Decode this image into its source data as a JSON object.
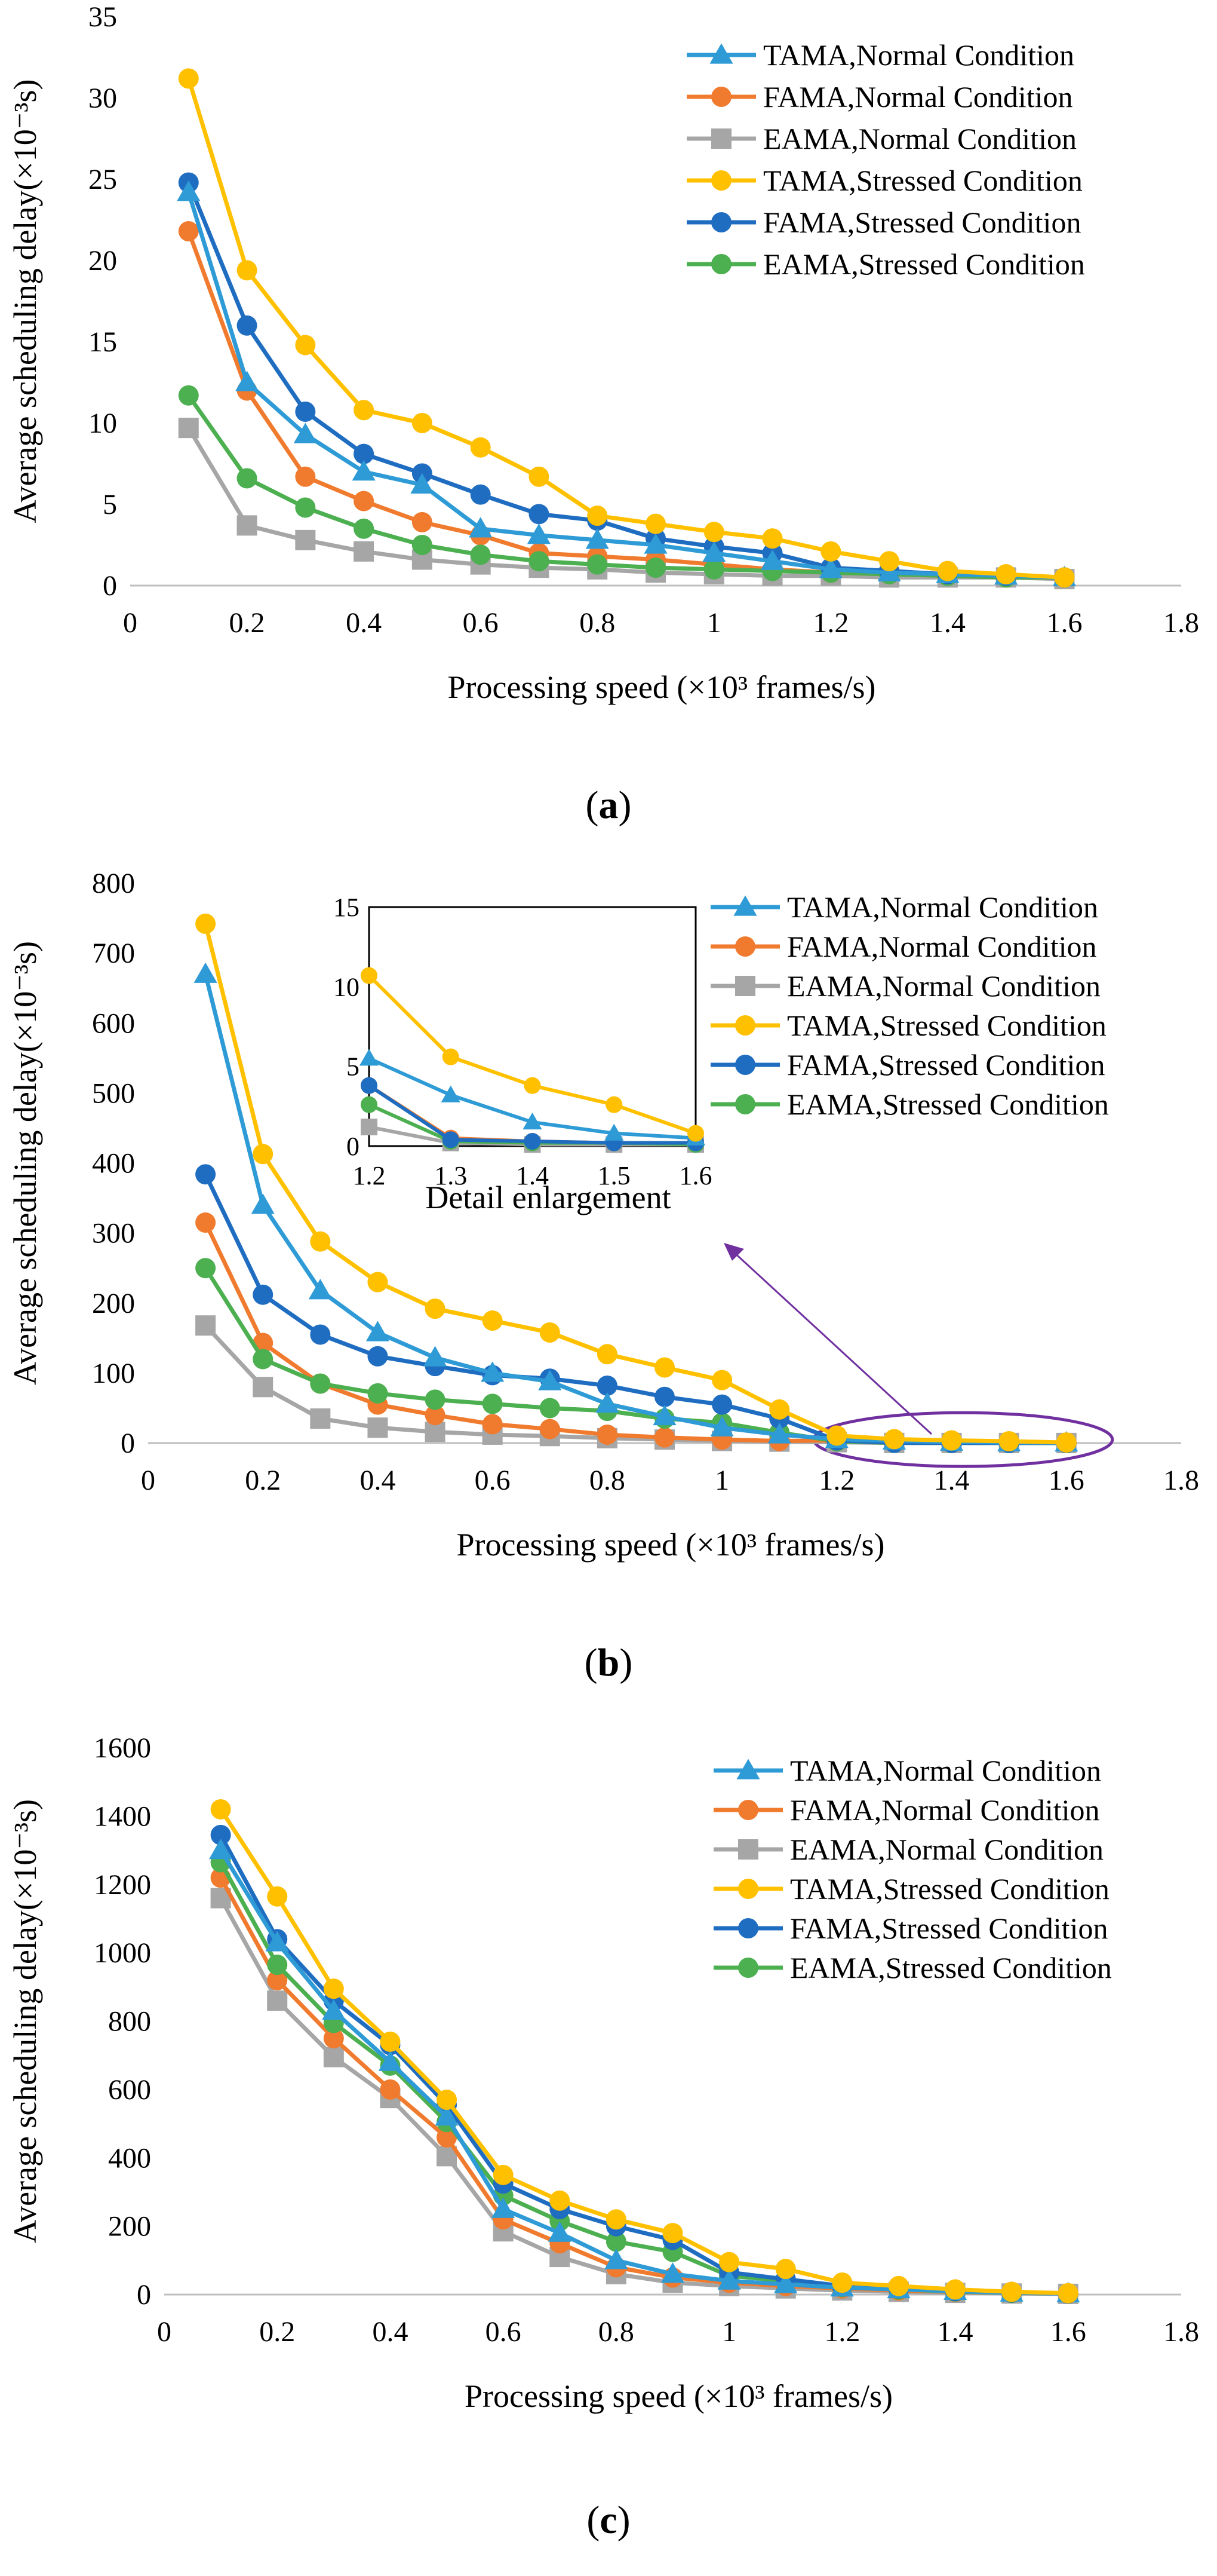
{
  "series_styles": {
    "TAMA,Normal Condition": {
      "color": "#2E9BD6",
      "marker": "triangle"
    },
    "FAMA,Normal Condition": {
      "color": "#F07B2E",
      "marker": "circle"
    },
    "EAMA,Normal Condition": {
      "color": "#A6A6A6",
      "marker": "square"
    },
    "TAMA,Stressed Condition": {
      "color": "#FFC000",
      "marker": "circle"
    },
    "FAMA,Stressed Condition": {
      "color": "#1F6DC1",
      "marker": "circle"
    },
    "EAMA,Stressed Condition": {
      "color": "#4CAF50",
      "marker": "circle"
    }
  },
  "panel_labels": {
    "a": {
      "open": "(",
      "letter": "a",
      "close": ")"
    },
    "b": {
      "open": "(",
      "letter": "b",
      "close": ")"
    },
    "c": {
      "open": "(",
      "letter": "c",
      "close": ")"
    }
  },
  "chart_data": [
    {
      "id": "a",
      "type": "line",
      "xlabel": "Processing speed (×10³ frames/s)",
      "ylabel": "Average scheduling delay(×10⁻³s)",
      "xlim": [
        0,
        1.8
      ],
      "ylim": [
        0,
        35
      ],
      "xticks": [
        "0",
        "0.2",
        "0.4",
        "0.6",
        "0.8",
        "1",
        "1.2",
        "1.4",
        "1.6",
        "1.8"
      ],
      "yticks": [
        "0",
        "5",
        "10",
        "15",
        "20",
        "25",
        "30",
        "35"
      ],
      "legend_position": "top-right",
      "x": [
        0.1,
        0.2,
        0.3,
        0.4,
        0.5,
        0.6,
        0.7,
        0.8,
        0.9,
        1.0,
        1.1,
        1.2,
        1.3,
        1.4,
        1.5,
        1.6
      ],
      "series": [
        {
          "name": "TAMA,Normal Condition",
          "values": [
            24.2,
            12.5,
            9.3,
            7.0,
            6.2,
            3.5,
            3.1,
            2.8,
            2.5,
            2.0,
            1.5,
            1.0,
            0.8,
            0.7,
            0.6,
            0.5
          ]
        },
        {
          "name": "FAMA,Normal Condition",
          "values": [
            21.8,
            12.0,
            6.7,
            5.2,
            3.9,
            3.1,
            2.0,
            1.8,
            1.6,
            1.3,
            1.0,
            0.8,
            0.7,
            0.6,
            0.5,
            0.5
          ]
        },
        {
          "name": "EAMA,Normal Condition",
          "values": [
            9.7,
            3.7,
            2.8,
            2.1,
            1.6,
            1.3,
            1.1,
            1.0,
            0.8,
            0.7,
            0.6,
            0.6,
            0.5,
            0.5,
            0.5,
            0.4
          ]
        },
        {
          "name": "TAMA,Stressed Condition",
          "values": [
            31.2,
            19.4,
            14.8,
            10.8,
            10.0,
            8.5,
            6.7,
            4.3,
            3.8,
            3.3,
            2.9,
            2.1,
            1.5,
            0.9,
            0.7,
            0.5
          ]
        },
        {
          "name": "FAMA,Stressed Condition",
          "values": [
            24.8,
            16.0,
            10.7,
            8.1,
            6.9,
            5.6,
            4.4,
            4.0,
            2.9,
            2.4,
            2.0,
            1.1,
            0.9,
            0.7,
            0.6,
            0.5
          ]
        },
        {
          "name": "EAMA,Stressed Condition",
          "values": [
            11.7,
            6.6,
            4.8,
            3.5,
            2.5,
            1.9,
            1.5,
            1.3,
            1.1,
            1.0,
            0.9,
            0.8,
            0.7,
            0.6,
            0.5,
            0.5
          ]
        }
      ]
    },
    {
      "id": "b",
      "type": "line",
      "xlabel": "Processing speed (×10³ frames/s)",
      "ylabel": "Average scheduling delay(×10⁻³s)",
      "xlim": [
        0,
        1.8
      ],
      "ylim": [
        0,
        800
      ],
      "xticks": [
        "0",
        "0.2",
        "0.4",
        "0.6",
        "0.8",
        "1",
        "1.2",
        "1.4",
        "1.6",
        "1.8"
      ],
      "yticks": [
        "0",
        "100",
        "200",
        "300",
        "400",
        "500",
        "600",
        "700",
        "800"
      ],
      "legend_position": "top-right",
      "annotation": "Detail enlargement",
      "x": [
        0.1,
        0.2,
        0.3,
        0.4,
        0.5,
        0.6,
        0.7,
        0.8,
        0.9,
        1.0,
        1.1,
        1.2,
        1.3,
        1.4,
        1.5,
        1.6
      ],
      "series": [
        {
          "name": "TAMA,Normal Condition",
          "values": [
            670,
            340,
            218,
            158,
            122,
            100,
            88,
            56,
            38,
            22,
            12,
            5.5,
            3.2,
            1.5,
            0.8,
            0.5
          ]
        },
        {
          "name": "FAMA,Normal Condition",
          "values": [
            315,
            143,
            85,
            55,
            40,
            27,
            20,
            12,
            8,
            5,
            3,
            3.8,
            0.5,
            0.3,
            0.2,
            0.2
          ]
        },
        {
          "name": "EAMA,Normal Condition",
          "values": [
            168,
            80,
            35,
            22,
            16,
            12,
            10,
            7,
            5,
            3,
            2,
            1.2,
            0.2,
            0.1,
            0.1,
            0.1
          ]
        },
        {
          "name": "TAMA,Stressed Condition",
          "values": [
            742,
            413,
            288,
            230,
            192,
            175,
            158,
            127,
            108,
            90,
            48,
            10.7,
            5.6,
            3.8,
            2.6,
            0.8
          ]
        },
        {
          "name": "FAMA,Stressed Condition",
          "values": [
            384,
            212,
            155,
            124,
            110,
            97,
            92,
            82,
            66,
            55,
            35,
            3.8,
            0.4,
            0.3,
            0.2,
            0.2
          ]
        },
        {
          "name": "EAMA,Stressed Condition",
          "values": [
            250,
            120,
            85,
            71,
            62,
            56,
            50,
            46,
            35,
            29,
            15,
            2.6,
            0.3,
            0.2,
            0.2,
            0.1
          ]
        }
      ],
      "inset": {
        "xlim": [
          1.2,
          1.6
        ],
        "ylim": [
          0,
          15
        ],
        "xticks": [
          "1.2",
          "1.3",
          "1.4",
          "1.5",
          "1.6"
        ],
        "yticks": [
          "0",
          "5",
          "10",
          "15"
        ],
        "x": [
          1.2,
          1.3,
          1.4,
          1.5,
          1.6
        ]
      }
    },
    {
      "id": "c",
      "type": "line",
      "xlabel": "Processing speed (×10³ frames/s)",
      "ylabel": "Average scheduling delay(×10⁻³s)",
      "xlim": [
        0,
        1.8
      ],
      "ylim": [
        0,
        1600
      ],
      "xticks": [
        "0",
        "0.2",
        "0.4",
        "0.6",
        "0.8",
        "1",
        "1.2",
        "1.4",
        "1.6",
        "1.8"
      ],
      "yticks": [
        "0",
        "200",
        "400",
        "600",
        "800",
        "1000",
        "1200",
        "1400",
        "1600"
      ],
      "legend_position": "top-right",
      "x": [
        0.1,
        0.2,
        0.3,
        0.4,
        0.5,
        0.6,
        0.7,
        0.8,
        0.9,
        1.0,
        1.1,
        1.2,
        1.3,
        1.4,
        1.5,
        1.6
      ],
      "series": [
        {
          "name": "TAMA,Normal Condition",
          "values": [
            1300,
            1030,
            830,
            680,
            520,
            250,
            180,
            100,
            60,
            40,
            30,
            20,
            15,
            10,
            5,
            3
          ]
        },
        {
          "name": "FAMA,Normal Condition",
          "values": [
            1220,
            920,
            750,
            600,
            460,
            220,
            150,
            80,
            50,
            35,
            25,
            18,
            12,
            8,
            5,
            3
          ]
        },
        {
          "name": "EAMA,Normal Condition",
          "values": [
            1160,
            860,
            695,
            575,
            405,
            185,
            110,
            60,
            35,
            25,
            18,
            12,
            8,
            5,
            3,
            2
          ]
        },
        {
          "name": "TAMA,Stressed Condition",
          "values": [
            1420,
            1165,
            895,
            740,
            570,
            350,
            275,
            220,
            180,
            95,
            75,
            35,
            25,
            15,
            8,
            4
          ]
        },
        {
          "name": "FAMA,Stressed Condition",
          "values": [
            1345,
            1040,
            860,
            730,
            555,
            325,
            250,
            200,
            160,
            65,
            45,
            25,
            18,
            10,
            6,
            3
          ]
        },
        {
          "name": "EAMA,Stressed Condition",
          "values": [
            1265,
            965,
            795,
            670,
            505,
            290,
            215,
            155,
            125,
            55,
            40,
            22,
            15,
            9,
            5,
            3
          ]
        }
      ]
    }
  ]
}
